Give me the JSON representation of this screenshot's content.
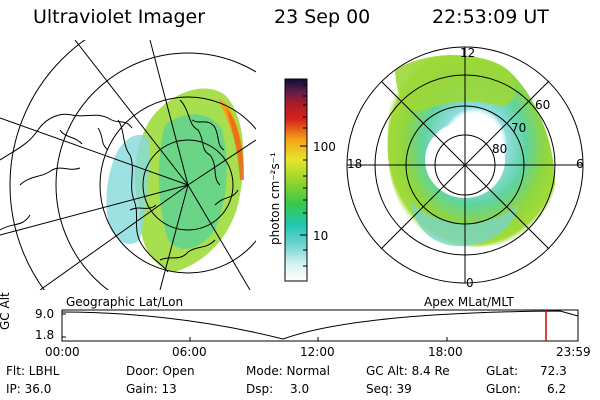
{
  "header": {
    "instrument": "Ultraviolet Imager",
    "date": "23 Sep 00",
    "time": "22:53:09 UT"
  },
  "colorbar": {
    "unit_label": "photon cm⁻²s⁻¹",
    "ticks": [
      "100",
      "10"
    ],
    "scale": "log"
  },
  "geo_panel": {
    "label": "Geographic Lat/Lon"
  },
  "apex_panel": {
    "label": "Apex MLat/MLT",
    "mlt_labels": [
      "12",
      "18",
      "6",
      "0"
    ],
    "mlat_labels": [
      "60",
      "70",
      "80"
    ]
  },
  "altitude_plot": {
    "ylabel": "GC Alt",
    "yticks": [
      "9.0",
      "1.8"
    ],
    "xticks": [
      "00:00",
      "06:00",
      "12:00",
      "18:00",
      "23:59"
    ],
    "marker_color": "#cc0000"
  },
  "footer": {
    "flt": "Flt: LBHL",
    "ip": "IP: 36.0",
    "door": "Door: Open",
    "gain": "Gain: 13",
    "mode": "Mode: Normal",
    "dsp_label": "Dsp:",
    "dsp_value": "3.0",
    "gcalt": "GC Alt: 8.4 Re",
    "seq": "Seq: 39",
    "glat_label": "GLat:",
    "glat_value": "72.3",
    "glon_label": "GLon:",
    "glon_value": "6.2"
  }
}
